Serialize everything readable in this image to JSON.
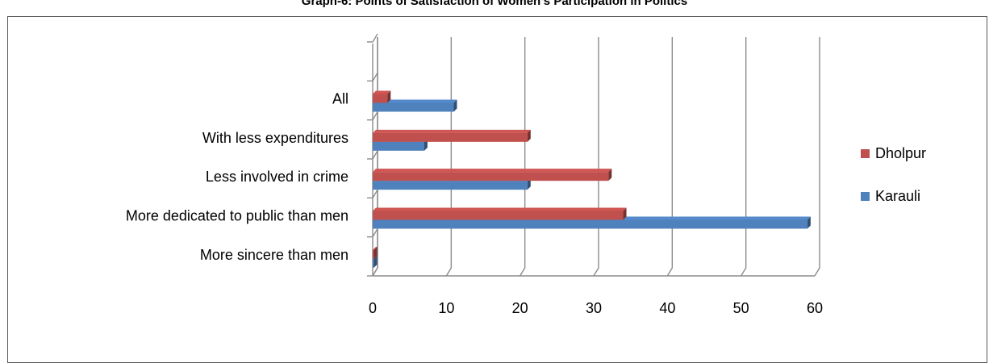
{
  "chart_data": {
    "type": "bar",
    "orientation": "horizontal",
    "title": "Graph-6: Points of Satisfaction of Women’s Participation in Politics",
    "categories": [
      "More sincere than men",
      "More dedicated to public than men",
      "Less involved in crime",
      "With less expenditures",
      "All",
      ""
    ],
    "series": [
      {
        "name": "Karauli",
        "color": "#4F81BD",
        "values": [
          0,
          59,
          21,
          7,
          11,
          null
        ]
      },
      {
        "name": "Dholpur",
        "color": "#C0504D",
        "values": [
          0,
          34,
          32,
          21,
          2,
          null
        ]
      }
    ],
    "xlim": [
      0,
      60
    ],
    "xticks": [
      "0",
      "10",
      "20",
      "30",
      "40",
      "50",
      "60"
    ],
    "grid": "vertical",
    "legend_position": "right"
  }
}
